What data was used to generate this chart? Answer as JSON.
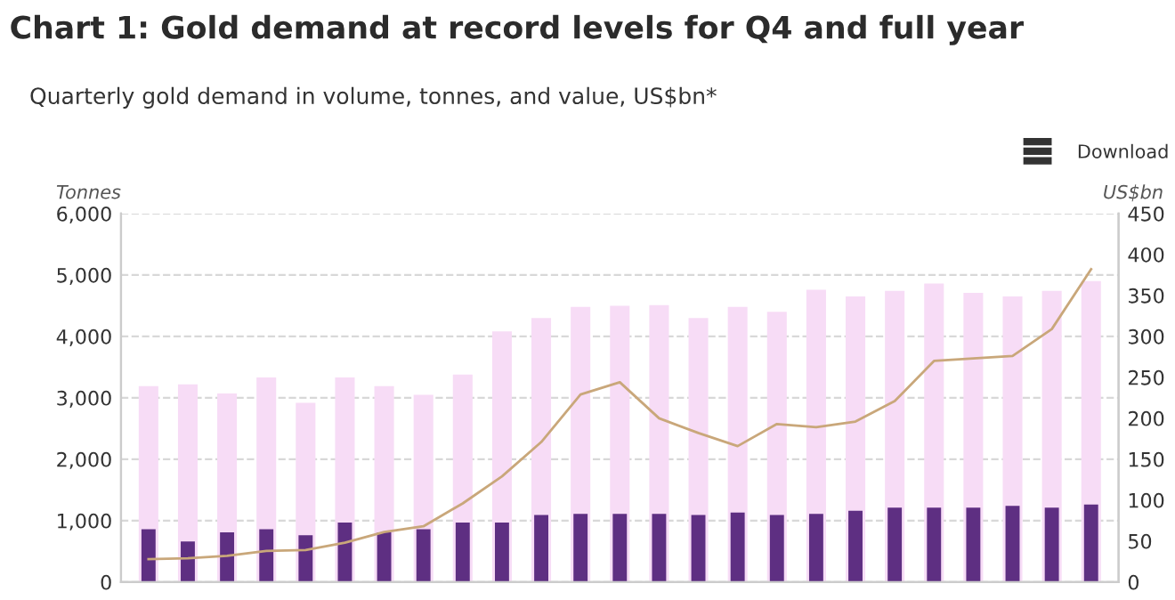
{
  "chart_data": {
    "type": "bar",
    "title": "Chart 1: Gold demand at record levels for Q4 and full year",
    "subtitle": "Quarterly gold demand in volume, tonnes, and value, US$bn*",
    "ylabel": "Tonnes",
    "y2label": "US$bn",
    "annotations": [
      "Download"
    ],
    "categories": [
      null,
      null,
      null,
      null,
      null,
      null,
      null,
      null,
      null,
      null,
      null,
      null,
      null,
      null,
      null,
      null,
      null,
      null,
      null,
      null,
      null,
      null,
      null,
      null,
      null
    ],
    "series": [
      {
        "color": "#f7dcf6",
        "values": [
          3190,
          3220,
          3070,
          3330,
          2920,
          3330,
          3190,
          3050,
          3380,
          4080,
          4300,
          4480,
          4500,
          4510,
          4300,
          4480,
          4400,
          4760,
          4650,
          4740,
          4860,
          4710,
          4650,
          4740,
          4900
        ]
      },
      {
        "color": "#5e2f82",
        "values": [
          860,
          660,
          810,
          860,
          760,
          970,
          810,
          860,
          970,
          970,
          1090,
          1110,
          1110,
          1110,
          1090,
          1130,
          1090,
          1110,
          1160,
          1210,
          1210,
          1210,
          1240,
          1210,
          1260
        ]
      },
      {
        "type": "line",
        "axis": "y2",
        "color": "#c9a77a",
        "values": [
          28,
          29,
          32,
          38,
          39,
          48,
          61,
          68,
          96,
          129,
          171,
          229,
          244,
          200,
          182,
          166,
          193,
          189,
          196,
          221,
          270,
          273,
          276,
          309,
          382
        ]
      }
    ],
    "ylim": [
      0,
      6000
    ],
    "yticks": [
      {
        "value": 0,
        "label": "0"
      },
      {
        "value": 1000,
        "label": "1,000"
      },
      {
        "value": 2000,
        "label": "2,000"
      },
      {
        "value": 3000,
        "label": "3,000"
      },
      {
        "value": 4000,
        "label": "4,000"
      },
      {
        "value": 5000,
        "label": "5,000"
      },
      {
        "value": 6000,
        "label": "6,000"
      }
    ],
    "y2lim": [
      0,
      450
    ],
    "y2ticks": [
      0,
      50,
      100,
      150,
      200,
      250,
      300,
      350,
      400,
      450
    ],
    "grid": "y",
    "legend": false,
    "marker": "none",
    "line_style": "solid"
  }
}
